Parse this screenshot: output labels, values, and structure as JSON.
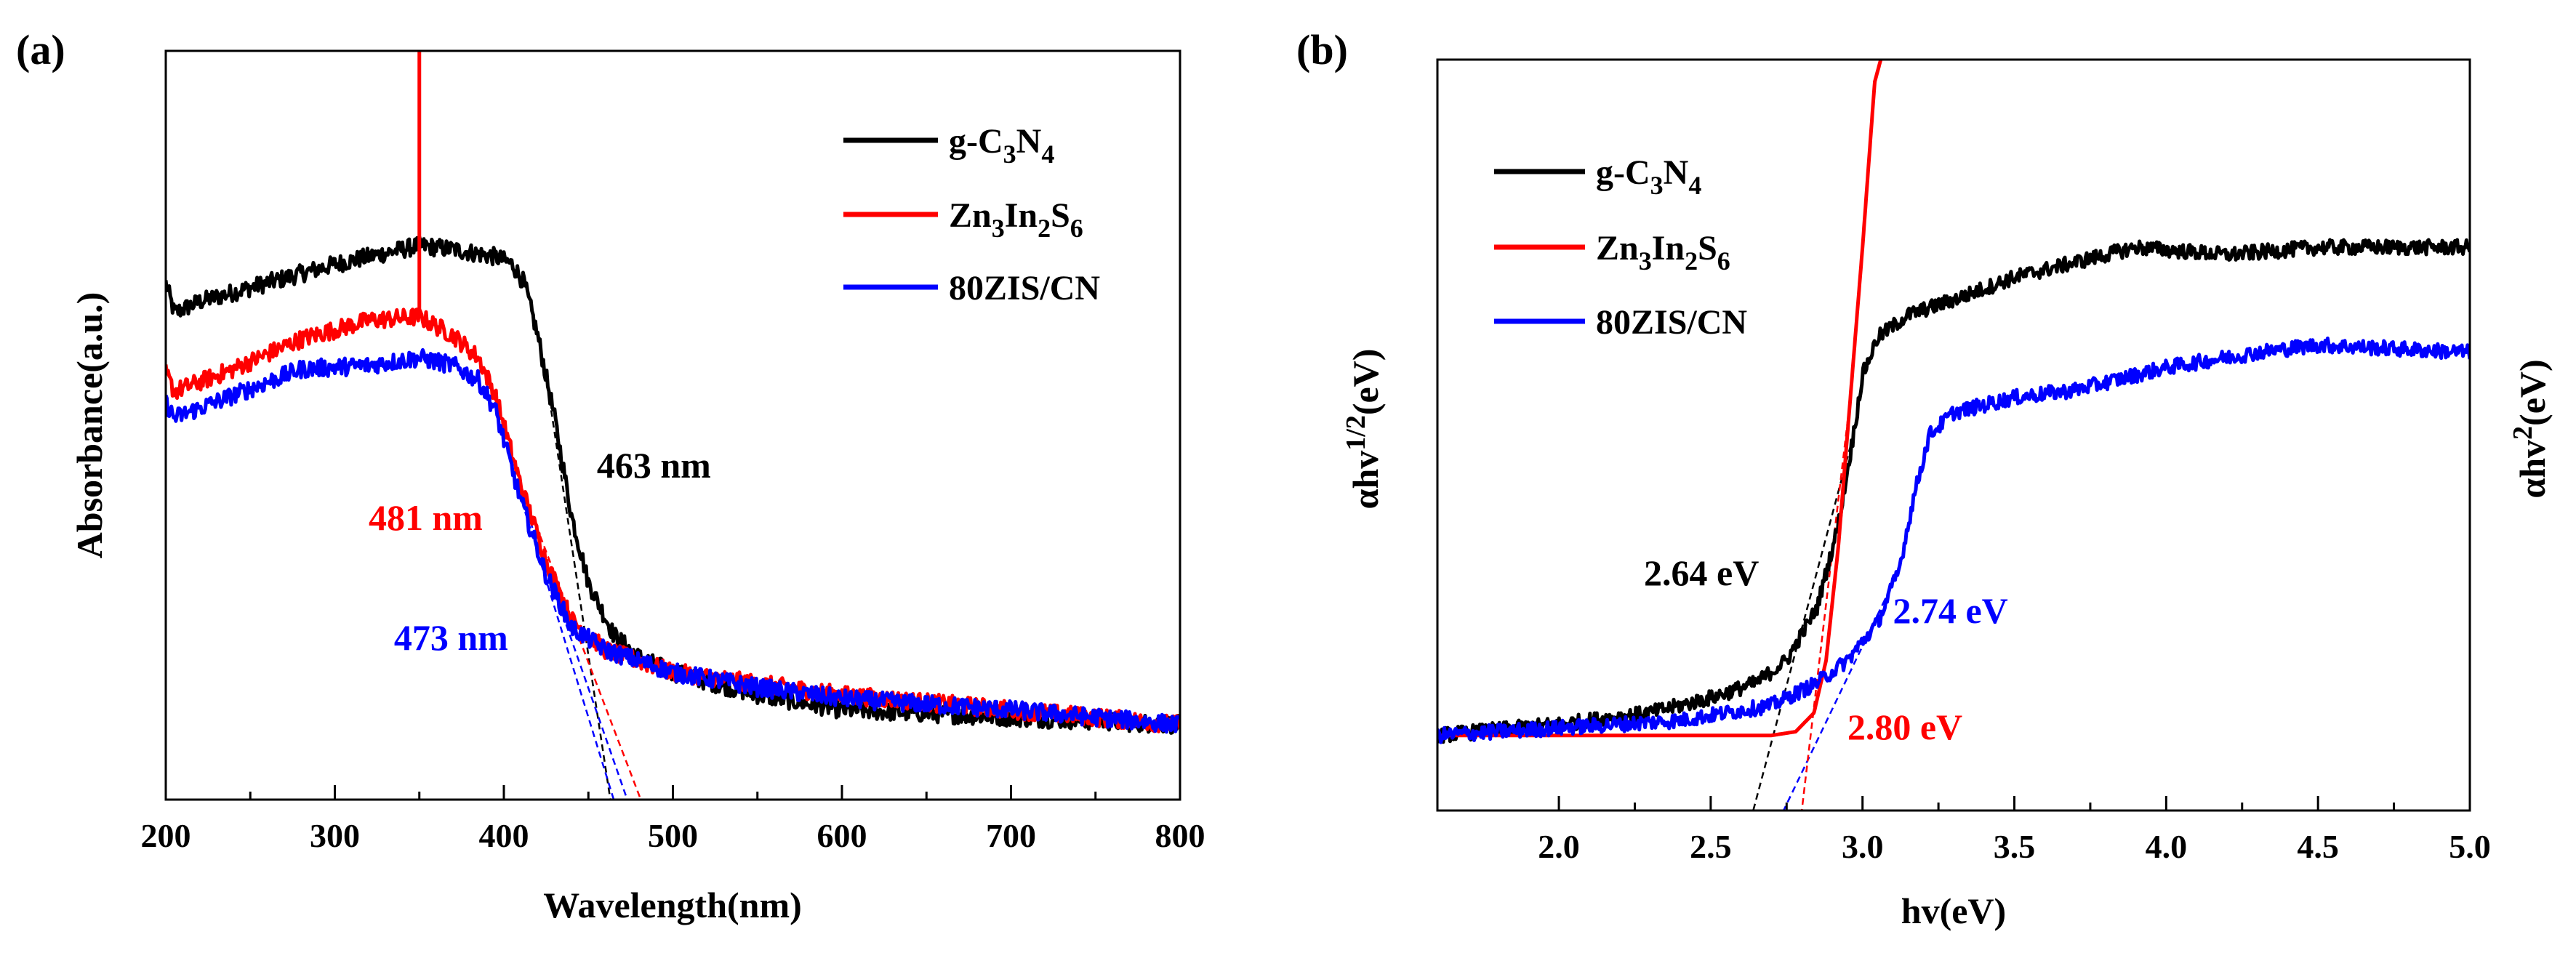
{
  "chart_data": [
    {
      "panel": "(a)",
      "type": "line",
      "xlabel": "Wavelength(nm)",
      "ylabel": "Absorbance(a.u.)",
      "xlim": [
        200,
        800
      ],
      "ylim": [
        0,
        1
      ],
      "xticks": [
        200,
        300,
        400,
        500,
        600,
        700,
        800
      ],
      "legend_position": "top-right",
      "series": [
        {
          "name": "g-C3N4",
          "color": "#000000",
          "noise": 0.012,
          "points": [
            [
              200,
              0.69
            ],
            [
              205,
              0.65
            ],
            [
              220,
              0.665
            ],
            [
              260,
              0.69
            ],
            [
              300,
              0.715
            ],
            [
              330,
              0.73
            ],
            [
              350,
              0.74
            ],
            [
              370,
              0.735
            ],
            [
              395,
              0.725
            ],
            [
              405,
              0.715
            ],
            [
              412,
              0.69
            ],
            [
              420,
              0.62
            ],
            [
              430,
              0.51
            ],
            [
              440,
              0.38
            ],
            [
              450,
              0.29
            ],
            [
              465,
              0.22
            ],
            [
              480,
              0.19
            ],
            [
              500,
              0.17
            ],
            [
              550,
              0.14
            ],
            [
              600,
              0.12
            ],
            [
              700,
              0.11
            ],
            [
              800,
              0.1
            ]
          ]
        },
        {
          "name": "Zn3In2S6",
          "color": "#ff0000",
          "noise": 0.012,
          "spike": {
            "x": 350,
            "y": 1.0
          },
          "points": [
            [
              200,
              0.57
            ],
            [
              205,
              0.545
            ],
            [
              240,
              0.575
            ],
            [
              280,
              0.615
            ],
            [
              320,
              0.64
            ],
            [
              350,
              0.645
            ],
            [
              370,
              0.62
            ],
            [
              385,
              0.59
            ],
            [
              395,
              0.54
            ],
            [
              410,
              0.42
            ],
            [
              425,
              0.32
            ],
            [
              440,
              0.24
            ],
            [
              460,
              0.2
            ],
            [
              500,
              0.17
            ],
            [
              550,
              0.155
            ],
            [
              600,
              0.14
            ],
            [
              700,
              0.12
            ],
            [
              800,
              0.1
            ]
          ]
        },
        {
          "name": "80ZIS/CN",
          "color": "#0000ff",
          "noise": 0.012,
          "points": [
            [
              200,
              0.53
            ],
            [
              205,
              0.51
            ],
            [
              240,
              0.54
            ],
            [
              280,
              0.575
            ],
            [
              320,
              0.58
            ],
            [
              350,
              0.59
            ],
            [
              370,
              0.58
            ],
            [
              385,
              0.56
            ],
            [
              395,
              0.52
            ],
            [
              410,
              0.4
            ],
            [
              425,
              0.3
            ],
            [
              440,
              0.23
            ],
            [
              460,
              0.2
            ],
            [
              500,
              0.17
            ],
            [
              550,
              0.15
            ],
            [
              600,
              0.135
            ],
            [
              700,
              0.12
            ],
            [
              800,
              0.1
            ]
          ]
        }
      ],
      "tangents": [
        {
          "color": "#000000",
          "from": [
            428,
            0.52
          ],
          "to": [
            463,
            0.0
          ]
        },
        {
          "color": "#ff0000",
          "from": [
            410,
            0.42
          ],
          "to": [
            481,
            0.0
          ]
        },
        {
          "color": "#0000ff",
          "from": [
            405,
            0.44
          ],
          "to": [
            473,
            0.0
          ]
        },
        {
          "color": "#0000ff",
          "from": [
            405,
            0.44
          ],
          "to": [
            465,
            0.0
          ]
        }
      ],
      "annotations": [
        {
          "text": "463 nm",
          "color": "#000000",
          "x": 455,
          "y": 0.43
        },
        {
          "text": "481 nm",
          "color": "#ff0000",
          "x": 320,
          "y": 0.36
        },
        {
          "text": "473 nm",
          "color": "#0000ff",
          "x": 335,
          "y": 0.2
        }
      ]
    },
    {
      "panel": "(b)",
      "type": "line",
      "xlabel": "hv(eV)",
      "ylabel_left": "αhv1/2(eV)",
      "ylabel_right": "αhv2(eV)",
      "xlim": [
        1.6,
        5.0
      ],
      "ylim": [
        0,
        1
      ],
      "xticks": [
        2.0,
        2.5,
        3.0,
        3.5,
        4.0,
        4.5,
        5.0
      ],
      "legend_position": "top-left",
      "series": [
        {
          "name": "g-C3N4",
          "color": "#000000",
          "noise": 0.01,
          "points": [
            [
              1.6,
              0.1
            ],
            [
              2.0,
              0.115
            ],
            [
              2.3,
              0.13
            ],
            [
              2.5,
              0.15
            ],
            [
              2.65,
              0.17
            ],
            [
              2.75,
              0.2
            ],
            [
              2.85,
              0.27
            ],
            [
              2.92,
              0.38
            ],
            [
              2.97,
              0.5
            ],
            [
              3.0,
              0.58
            ],
            [
              3.05,
              0.63
            ],
            [
              3.15,
              0.66
            ],
            [
              3.3,
              0.68
            ],
            [
              3.5,
              0.71
            ],
            [
              3.7,
              0.73
            ],
            [
              3.9,
              0.75
            ],
            [
              4.2,
              0.74
            ],
            [
              4.5,
              0.75
            ],
            [
              5.0,
              0.75
            ]
          ]
        },
        {
          "name": "Zn3In2S6",
          "color": "#ff0000",
          "noise": 0.0,
          "points": [
            [
              1.6,
              0.1
            ],
            [
              2.7,
              0.1
            ],
            [
              2.78,
              0.105
            ],
            [
              2.84,
              0.13
            ],
            [
              2.88,
              0.2
            ],
            [
              2.92,
              0.35
            ],
            [
              2.96,
              0.55
            ],
            [
              3.0,
              0.75
            ],
            [
              3.04,
              0.97
            ],
            [
              3.06,
              1.0
            ]
          ]
        },
        {
          "name": "80ZIS/CN",
          "color": "#0000ff",
          "noise": 0.01,
          "points": [
            [
              1.6,
              0.1
            ],
            [
              2.0,
              0.11
            ],
            [
              2.4,
              0.12
            ],
            [
              2.7,
              0.14
            ],
            [
              2.85,
              0.17
            ],
            [
              2.95,
              0.2
            ],
            [
              3.05,
              0.25
            ],
            [
              3.12,
              0.32
            ],
            [
              3.17,
              0.42
            ],
            [
              3.22,
              0.5
            ],
            [
              3.3,
              0.53
            ],
            [
              3.5,
              0.55
            ],
            [
              3.7,
              0.56
            ],
            [
              4.0,
              0.59
            ],
            [
              4.3,
              0.61
            ],
            [
              4.5,
              0.62
            ],
            [
              5.0,
              0.61
            ]
          ]
        }
      ],
      "tangents": [
        {
          "color": "#000000",
          "from": [
            2.97,
            0.5
          ],
          "to": [
            2.64,
            0.0
          ]
        },
        {
          "color": "#0000ff",
          "from": [
            3.12,
            0.32
          ],
          "to": [
            2.74,
            0.0
          ]
        },
        {
          "color": "#ff0000",
          "from": [
            2.96,
            0.55
          ],
          "to": [
            2.8,
            0.0
          ]
        }
      ],
      "annotations": [
        {
          "text": "2.64 eV",
          "color": "#000000",
          "x": 2.28,
          "y": 0.3
        },
        {
          "text": "2.74 eV",
          "color": "#0000ff",
          "x": 3.1,
          "y": 0.25
        },
        {
          "text": "2.80 eV",
          "color": "#ff0000",
          "x": 2.95,
          "y": 0.095
        }
      ]
    }
  ],
  "panels": {
    "a": {
      "label": "(a)",
      "xlabel": "Wavelength(nm)",
      "ylabel": "Absorbance(a.u.)",
      "legend": [
        {
          "prefix": "g-C",
          "sub1": "3",
          "mid": "N",
          "sub2": "4",
          "tail": "",
          "sub3": ""
        },
        {
          "prefix": "Zn",
          "sub1": "3",
          "mid": "In",
          "sub2": "2",
          "tail": "S",
          "sub3": "6"
        },
        {
          "prefix": "80ZIS/CN",
          "sub1": "",
          "mid": "",
          "sub2": "",
          "tail": "",
          "sub3": ""
        }
      ]
    },
    "b": {
      "label": "(b)",
      "xlabel": "hv(eV)",
      "ylabel_left_base": "αhv",
      "ylabel_left_sup": "1/2",
      "ylabel_left_unit": "(eV)",
      "ylabel_right_base": "αhv",
      "ylabel_right_sup": "2",
      "ylabel_right_unit": "(eV)",
      "legend": [
        {
          "prefix": "g-C",
          "sub1": "3",
          "mid": "N",
          "sub2": "4",
          "tail": "",
          "sub3": ""
        },
        {
          "prefix": "Zn",
          "sub1": "3",
          "mid": "In",
          "sub2": "2",
          "tail": "S",
          "sub3": "6"
        },
        {
          "prefix": "80ZIS/CN",
          "sub1": "",
          "mid": "",
          "sub2": "",
          "tail": "",
          "sub3": ""
        }
      ]
    }
  }
}
